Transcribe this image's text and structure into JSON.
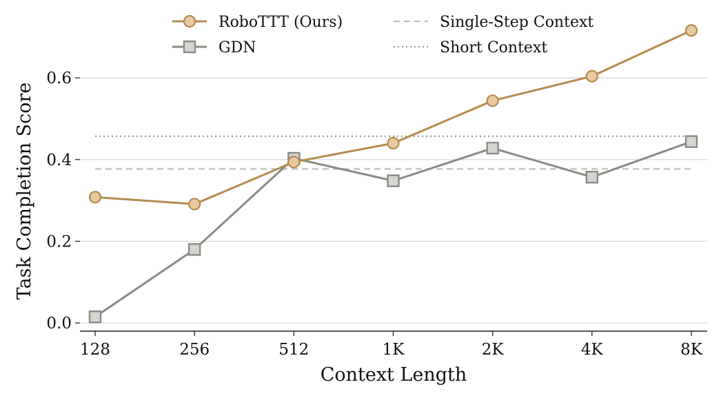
{
  "chart_data": {
    "type": "line",
    "xlabel": "Context Length",
    "ylabel": "Task Completion Score",
    "categories": [
      "128",
      "256",
      "512",
      "1K",
      "2K",
      "4K",
      "8K"
    ],
    "ylim": [
      -0.02,
      0.74
    ],
    "yticks": [
      0.0,
      0.2,
      0.4,
      0.6
    ],
    "ytick_labels": [
      "0.0",
      "0.2",
      "0.4",
      "0.6"
    ],
    "grid": "horizontal",
    "legend_position": "top",
    "series": [
      {
        "name": "RoboTTT (Ours)",
        "color": "#b58a4f",
        "marker": "circle",
        "values": [
          0.308,
          0.291,
          0.394,
          0.44,
          0.544,
          0.604,
          0.716
        ]
      },
      {
        "name": "GDN",
        "color": "#898b84",
        "marker": "square",
        "values": [
          0.015,
          0.18,
          0.403,
          0.348,
          0.428,
          0.357,
          0.444
        ]
      }
    ],
    "reference_lines": [
      {
        "name": "Single-Step Context",
        "value": 0.377,
        "style": "dashed",
        "color": "#b5c4bc"
      },
      {
        "name": "Short Context",
        "value": 0.457,
        "style": "dotted",
        "color": "#8fa49c"
      }
    ]
  }
}
